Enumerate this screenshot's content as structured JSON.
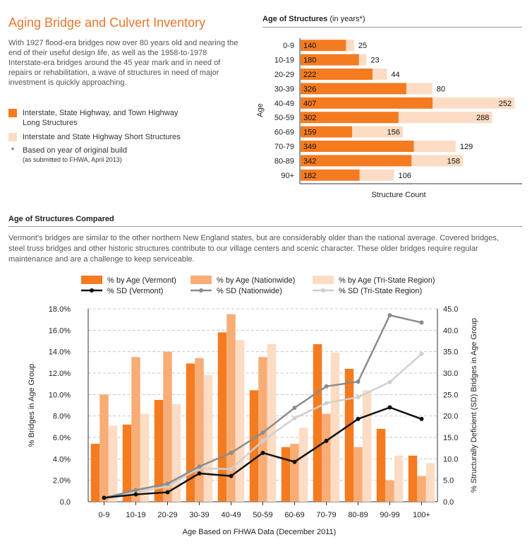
{
  "header": {
    "title": "Aging Bridge and Culvert Inventory",
    "intro": "With 1927 flood-era bridges now over 80 years old and nearing the end of their useful design life, as well as the 1958-to-1978 Interstate-era bridges around the 45 year mark and in need of repairs or rehabilitation, a wave of structures in need of major investment is quickly approaching."
  },
  "legend_top": {
    "long": "Interstate, State Highway, and Town Highway Long Structures",
    "short": "Interstate and State Highway Short Structures",
    "star": "*",
    "note_main": "Based on year of original build",
    "note_sub": "(as submitted to FHWA, April 2013)"
  },
  "section2": {
    "title": "Age of Structures Compared",
    "paragraph": "Vermont's bridges are similar to the other northern New England states, but are considerably older than the national average.  Covered bridges, steel truss bridges and other historic structures contribute to our village centers and scenic character.  These older bridges require regular maintenance and are a challenge to keep serviceable."
  },
  "colors": {
    "vermont": "#f47b20",
    "nationwide": "#f8ad76",
    "tristate": "#fcdcc4",
    "sd_vermont": "#111111",
    "sd_nationwide": "#8c8c8c",
    "sd_tristate": "#d0d0d0",
    "title": "#e8772e"
  },
  "chart_data": [
    {
      "type": "bar",
      "orientation": "horizontal",
      "stacked": true,
      "title": "Age of Structures",
      "title_suffix": "(in years*)",
      "xlabel": "Structure Count",
      "ylabel": "Age",
      "categories": [
        "0-9",
        "10-19",
        "20-29",
        "30-39",
        "40-49",
        "50-59",
        "60-69",
        "70-79",
        "80-89",
        "90+"
      ],
      "series": [
        {
          "name": "Interstate, State Highway, and Town Highway Long Structures",
          "values": [
            140,
            180,
            222,
            326,
            407,
            302,
            159,
            349,
            342,
            182
          ]
        },
        {
          "name": "Interstate and State Highway Short Structures",
          "values": [
            25,
            23,
            44,
            80,
            252,
            288,
            156,
            129,
            158,
            106
          ]
        }
      ],
      "xlim": [
        0,
        740
      ]
    },
    {
      "type": "bar",
      "combo": "bar+line",
      "title": "Age of Structures Compared",
      "xlabel": "Age Based on FHWA Data (December 2011)",
      "ylabel": "% Bridges in Age Group",
      "ylabel_right": "% Structurally Deficient (SD) Bridges in Age Group",
      "ylim": [
        0,
        18
      ],
      "ylim_right": [
        0,
        45
      ],
      "yticks": [
        "0.0",
        "2.0%",
        "4.0%",
        "6.0%",
        "8.0%",
        "10.0%",
        "12.0%",
        "14.0%",
        "16.0%",
        "18.0%"
      ],
      "yticks_right": [
        "0.0",
        "5.0",
        "10.0",
        "15.0",
        "20.0",
        "25.0",
        "30.0",
        "35.0",
        "40.0",
        "45.0"
      ],
      "categories": [
        "0-9",
        "10-19",
        "20-29",
        "30-39",
        "40-49",
        "50-59",
        "60-69",
        "70-79",
        "80-89",
        "90-99",
        "100+"
      ],
      "series": [
        {
          "name": "% by Age (Vermont)",
          "kind": "bar",
          "values": [
            5.4,
            7.2,
            9.5,
            12.9,
            15.8,
            10.4,
            5.1,
            14.7,
            12.4,
            6.8,
            4.3
          ]
        },
        {
          "name": "% by Age (Nationwide)",
          "kind": "bar",
          "values": [
            10.0,
            13.5,
            14.0,
            13.4,
            17.5,
            13.5,
            5.4,
            8.2,
            5.1,
            2.0,
            2.4
          ]
        },
        {
          "name": "% by Age (Tri-State Region)",
          "kind": "bar",
          "values": [
            7.1,
            8.2,
            9.1,
            11.8,
            15.1,
            14.7,
            6.9,
            13.9,
            10.4,
            4.3,
            3.6
          ]
        },
        {
          "name": "% SD (Vermont)",
          "kind": "line",
          "axis": "right",
          "values": [
            0.9,
            1.7,
            2.2,
            6.6,
            6.0,
            11.4,
            9.3,
            14.2,
            19.3,
            22.0,
            19.3
          ]
        },
        {
          "name": "% SD (Nationwide)",
          "kind": "line",
          "axis": "right",
          "values": [
            0.9,
            2.7,
            4.2,
            8.2,
            11.4,
            16.1,
            21.9,
            26.9,
            28.0,
            43.5,
            41.8
          ]
        },
        {
          "name": "% SD (Tri-State Region)",
          "kind": "line",
          "axis": "right",
          "values": [
            0.9,
            2.2,
            3.6,
            7.8,
            7.6,
            14.2,
            19.5,
            23.0,
            24.4,
            27.9,
            34.5
          ]
        }
      ],
      "grid": true,
      "legend_position": "top"
    }
  ]
}
